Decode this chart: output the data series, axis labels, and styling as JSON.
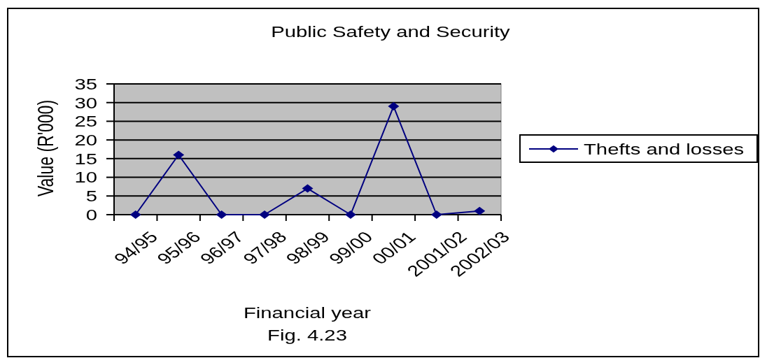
{
  "chart_data": {
    "type": "line",
    "title": "Public Safety and Security",
    "xlabel": "Financial year",
    "ylabel": "Value (R'000)",
    "annotations": [
      "Fig. 4.23"
    ],
    "categories": [
      "94/95",
      "95/96",
      "96/97",
      "97/98",
      "98/99",
      "99/00",
      "00/01",
      "2001/02",
      "2002/03"
    ],
    "series": [
      {
        "name": "Thefts and losses",
        "color": "#000080",
        "values": [
          0,
          16,
          0,
          0,
          7,
          0,
          29,
          0,
          1
        ]
      }
    ],
    "ylim": [
      0,
      35
    ],
    "yticks": [
      0,
      5,
      10,
      15,
      20,
      25,
      30,
      35
    ],
    "grid": "y",
    "legend": "right",
    "marker": "diamond",
    "line_style": "solid"
  }
}
